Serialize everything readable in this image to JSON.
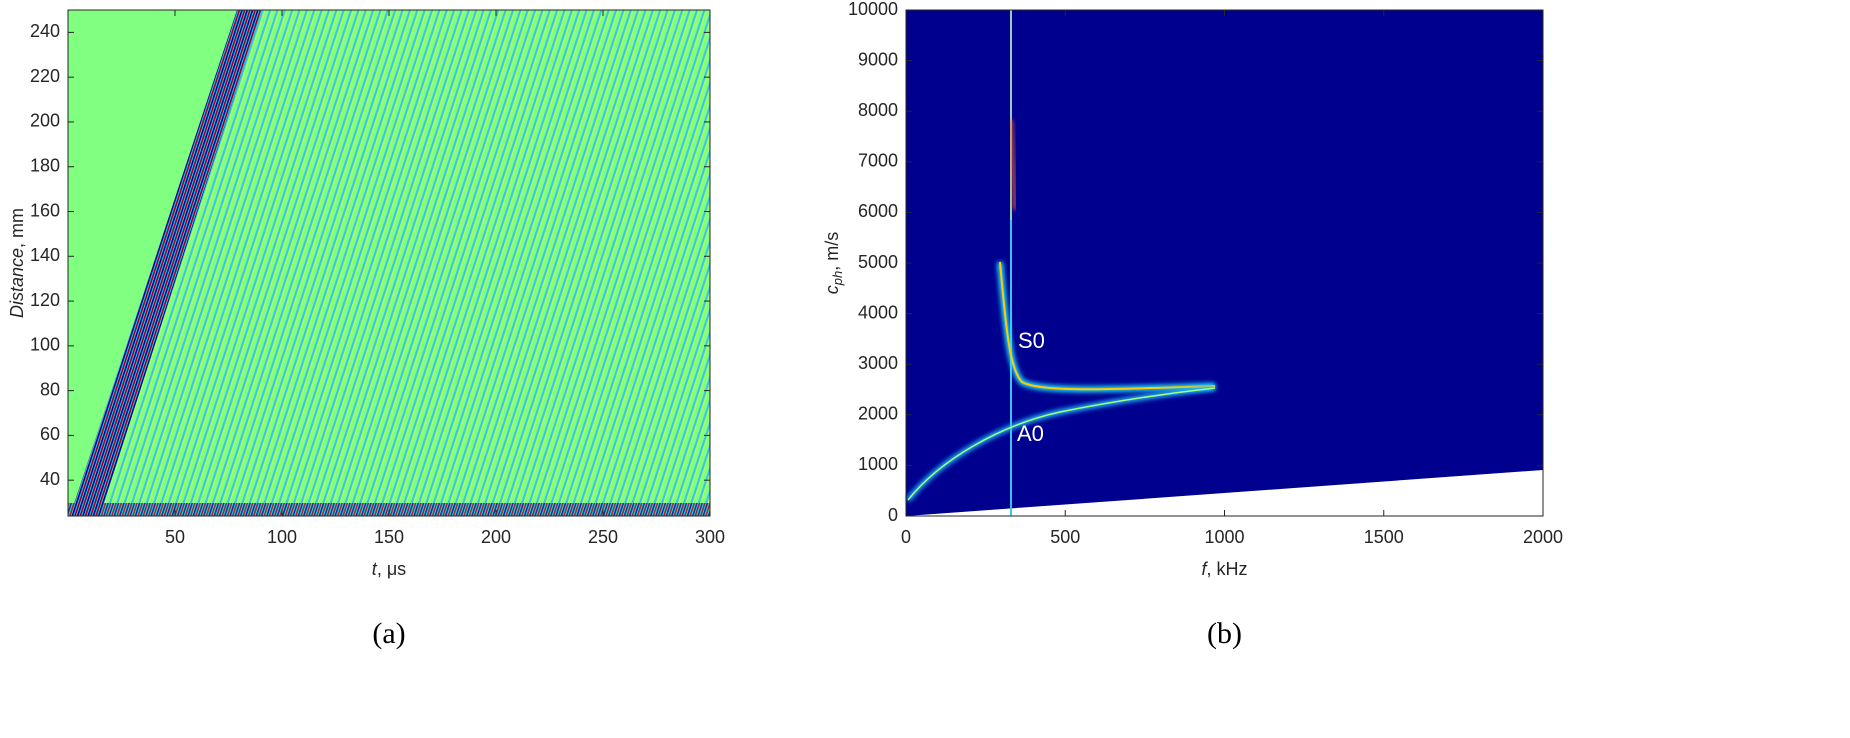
{
  "chart_data": [
    {
      "type": "heatmap",
      "caption": "(a)",
      "xlabel": [
        "t",
        ", μs"
      ],
      "ylabel": [
        "Distance",
        ", mm"
      ],
      "xlim": [
        0,
        300
      ],
      "xticks": [
        50,
        100,
        150,
        200,
        250,
        300
      ],
      "ylim": [
        24,
        250
      ],
      "yticks": [
        40,
        60,
        80,
        100,
        120,
        140,
        160,
        180,
        200,
        220,
        240
      ]
    },
    {
      "type": "heatmap",
      "caption": "(b)",
      "xlabel": [
        "f",
        ", kHz"
      ],
      "ylabel": [
        "c",
        "ph",
        ", m/s"
      ],
      "xlim": [
        0,
        2000
      ],
      "xticks": [
        0,
        500,
        1000,
        1500,
        2000
      ],
      "ylim": [
        0,
        10000
      ],
      "yticks": [
        0,
        1000,
        2000,
        3000,
        4000,
        5000,
        6000,
        7000,
        8000,
        9000,
        10000
      ],
      "annotations": [
        "S0",
        "A0"
      ]
    }
  ]
}
